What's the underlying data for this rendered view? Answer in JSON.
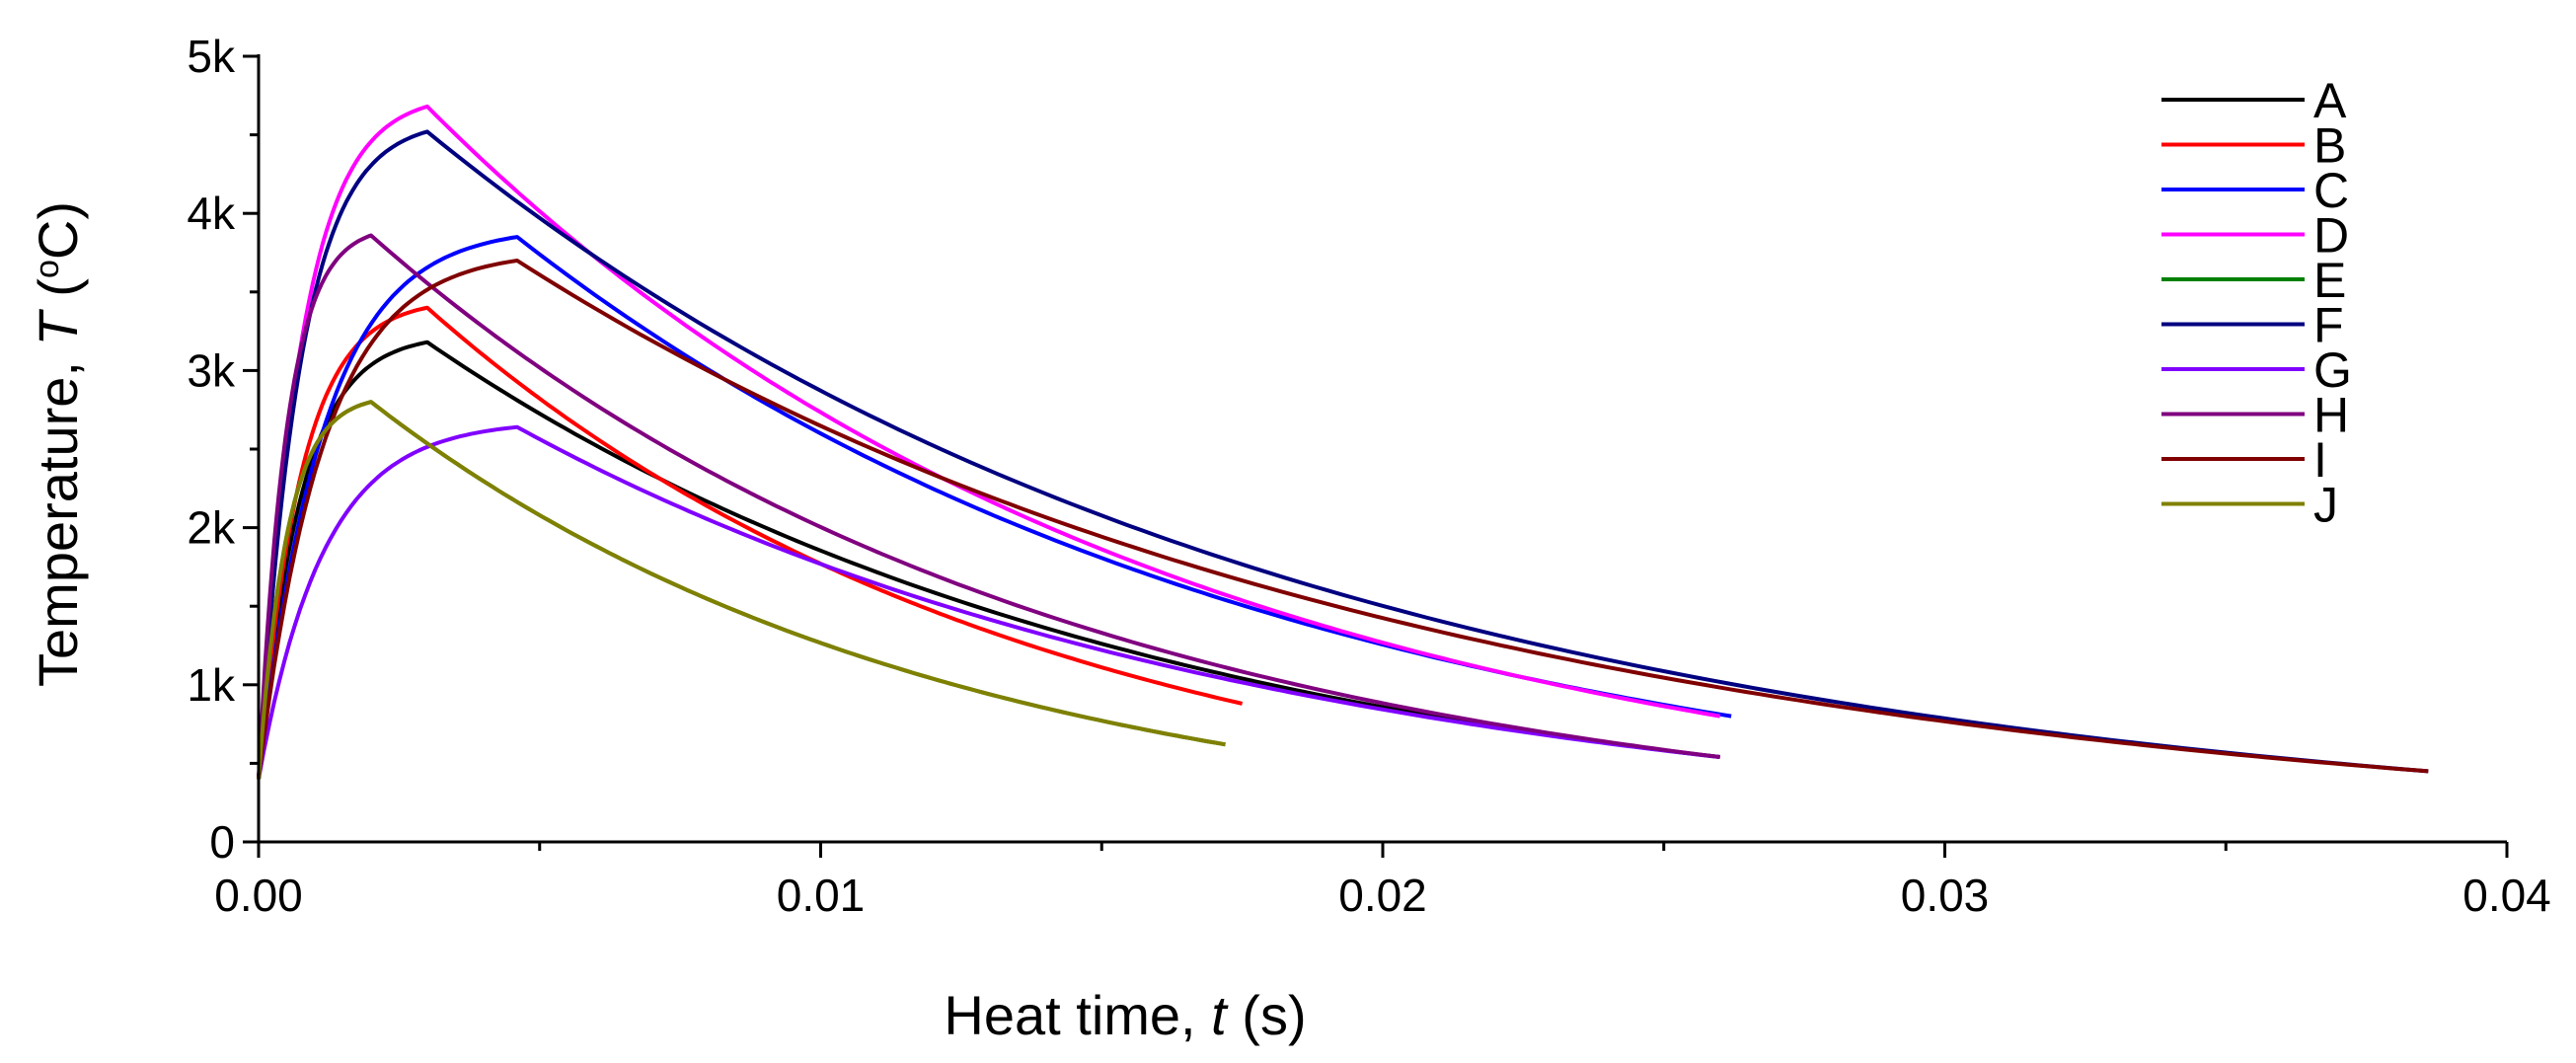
{
  "chart_data": {
    "type": "line",
    "title": "",
    "xlabel": {
      "prefix": "Heat time, ",
      "symbol": "t",
      "suffix": " (s)"
    },
    "ylabel": {
      "prefix": "Temperature, ",
      "symbol": "T",
      "unit_open": " (",
      "unit_sup": "o",
      "unit_rest": "C)"
    },
    "xlim": [
      0,
      0.04
    ],
    "ylim": [
      0,
      5000
    ],
    "x_ticks": [
      {
        "value": 0,
        "label": "0.00"
      },
      {
        "value": 0.01,
        "label": "0.01"
      },
      {
        "value": 0.02,
        "label": "0.02"
      },
      {
        "value": 0.03,
        "label": "0.03"
      },
      {
        "value": 0.04,
        "label": "0.04"
      }
    ],
    "y_ticks": [
      {
        "value": 0,
        "label": "0"
      },
      {
        "value": 1000,
        "label": "1k"
      },
      {
        "value": 2000,
        "label": "2k"
      },
      {
        "value": 3000,
        "label": "3k"
      },
      {
        "value": 4000,
        "label": "4k"
      },
      {
        "value": 5000,
        "label": "5k"
      }
    ],
    "legend_position": "right",
    "series": [
      {
        "name": "A",
        "color": "#000000",
        "start": 400,
        "t_peak": 0.003,
        "peak": 3180,
        "t_end": 0.026,
        "end": 540
      },
      {
        "name": "B",
        "color": "#ff0000",
        "start": 400,
        "t_peak": 0.003,
        "peak": 3400,
        "t_end": 0.0175,
        "end": 880
      },
      {
        "name": "C",
        "color": "#0000ff",
        "start": 400,
        "t_peak": 0.0046,
        "peak": 3850,
        "t_end": 0.0262,
        "end": 800
      },
      {
        "name": "D",
        "color": "#ff00ff",
        "start": 400,
        "t_peak": 0.003,
        "peak": 4680,
        "t_end": 0.026,
        "end": 800
      },
      {
        "name": "E",
        "color": "#008000",
        "start": 400,
        "t_peak": 0.002,
        "peak": 2800,
        "t_end": 0.0172,
        "end": 620
      },
      {
        "name": "F",
        "color": "#000080",
        "start": 400,
        "t_peak": 0.003,
        "peak": 4520,
        "t_end": 0.0386,
        "end": 450
      },
      {
        "name": "G",
        "color": "#8000ff",
        "start": 400,
        "t_peak": 0.0046,
        "peak": 2640,
        "t_end": 0.026,
        "end": 540
      },
      {
        "name": "H",
        "color": "#800080",
        "start": 400,
        "t_peak": 0.002,
        "peak": 3860,
        "t_end": 0.026,
        "end": 540
      },
      {
        "name": "I",
        "color": "#800000",
        "start": 400,
        "t_peak": 0.0046,
        "peak": 3700,
        "t_end": 0.0386,
        "end": 450
      },
      {
        "name": "J",
        "color": "#808000",
        "start": 400,
        "t_peak": 0.002,
        "peak": 2800,
        "t_end": 0.0172,
        "end": 620
      }
    ]
  }
}
